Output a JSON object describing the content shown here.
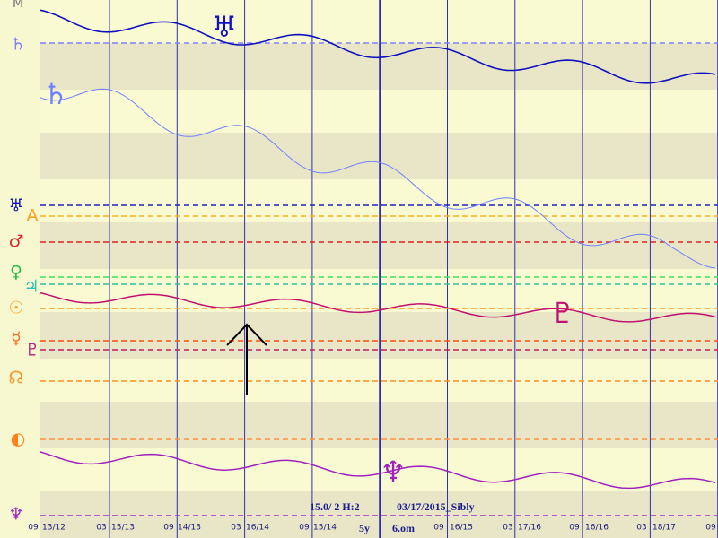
{
  "left_glyphs": [
    "M",
    "♄",
    "♅",
    "A",
    "♂",
    "♀",
    "♃",
    "☉",
    "☿",
    "♇",
    "☊",
    "◐",
    "♆"
  ],
  "plot_glyphs": [
    "♅",
    "♄",
    "♇",
    "♆"
  ],
  "bottom_labels": [
    "09",
    "13/12",
    "03",
    "15/13",
    "09",
    "14/13",
    "03",
    "16/14",
    "09",
    "15/14",
    "09",
    "16/15",
    "03",
    "17/16",
    "09",
    "16/16",
    "03",
    "18/17",
    "09"
  ],
  "status": {
    "settings": "15.0/ 2 H:2",
    "span": "5y",
    "chart": "03/17/2015_Sibly",
    "orb": "6.om"
  }
}
